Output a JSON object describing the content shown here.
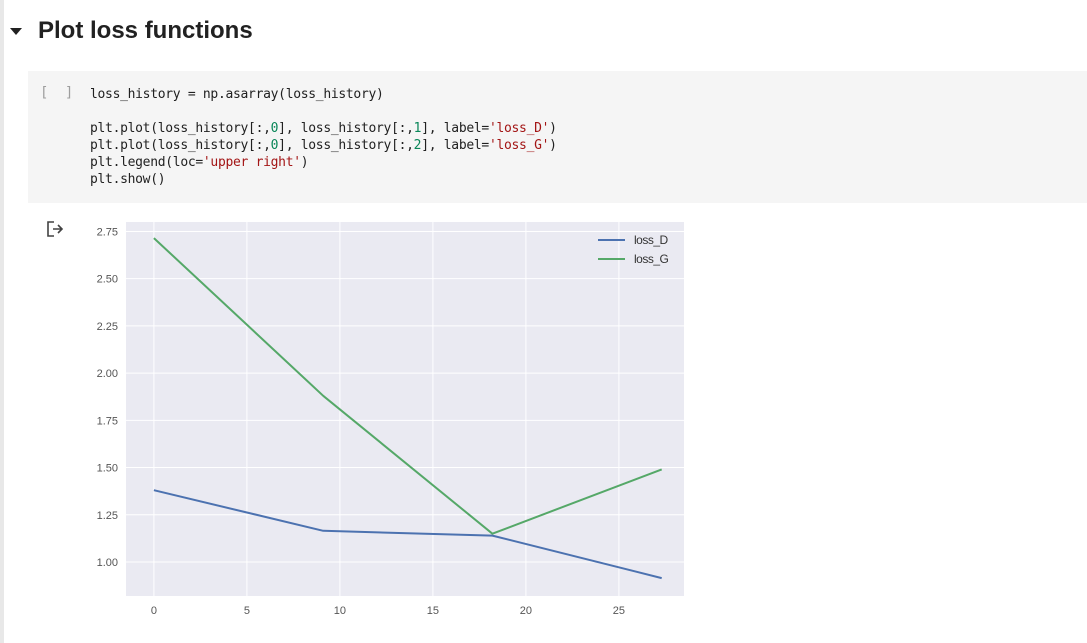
{
  "section": {
    "title": "Plot loss functions"
  },
  "cell": {
    "exec_count": "[ ]",
    "code_lines": [
      [
        {
          "t": "loss_history = np.asarray(loss_history)",
          "c": ""
        }
      ],
      [
        {
          "t": "",
          "c": ""
        }
      ],
      [
        {
          "t": "plt.plot(loss_history[:,",
          "c": ""
        },
        {
          "t": "0",
          "c": "num"
        },
        {
          "t": "], loss_history[:,",
          "c": ""
        },
        {
          "t": "1",
          "c": "num"
        },
        {
          "t": "], label=",
          "c": ""
        },
        {
          "t": "'loss_D'",
          "c": "str"
        },
        {
          "t": ")",
          "c": ""
        }
      ],
      [
        {
          "t": "plt.plot(loss_history[:,",
          "c": ""
        },
        {
          "t": "0",
          "c": "num"
        },
        {
          "t": "], loss_history[:,",
          "c": ""
        },
        {
          "t": "2",
          "c": "num"
        },
        {
          "t": "], label=",
          "c": ""
        },
        {
          "t": "'loss_G'",
          "c": "str"
        },
        {
          "t": ")",
          "c": ""
        }
      ],
      [
        {
          "t": "plt.legend(loc=",
          "c": ""
        },
        {
          "t": "'upper right'",
          "c": "str"
        },
        {
          "t": ")",
          "c": ""
        }
      ],
      [
        {
          "t": "plt.show()",
          "c": ""
        }
      ]
    ]
  },
  "chart_data": {
    "type": "line",
    "title": "",
    "xlabel": "",
    "ylabel": "",
    "xlim": [
      -1.5,
      28.5
    ],
    "ylim": [
      0.82,
      2.8
    ],
    "xticks": [
      0,
      5,
      10,
      15,
      20,
      25
    ],
    "yticks": [
      1.0,
      1.25,
      1.5,
      1.75,
      2.0,
      2.25,
      2.5,
      2.75
    ],
    "ytick_labels": [
      "1.00",
      "1.25",
      "1.50",
      "1.75",
      "2.00",
      "2.25",
      "2.50",
      "2.75"
    ],
    "grid": true,
    "background": "#eaeaf2",
    "legend_position": "upper right",
    "series": [
      {
        "name": "loss_D",
        "color": "#4c72b0",
        "x": [
          0,
          9.1,
          18.2,
          27.3
        ],
        "y": [
          1.38,
          1.165,
          1.14,
          0.915
        ]
      },
      {
        "name": "loss_G",
        "color": "#55a868",
        "x": [
          0,
          9.1,
          18.2,
          27.3
        ],
        "y": [
          2.715,
          1.88,
          1.15,
          1.49
        ]
      }
    ]
  }
}
